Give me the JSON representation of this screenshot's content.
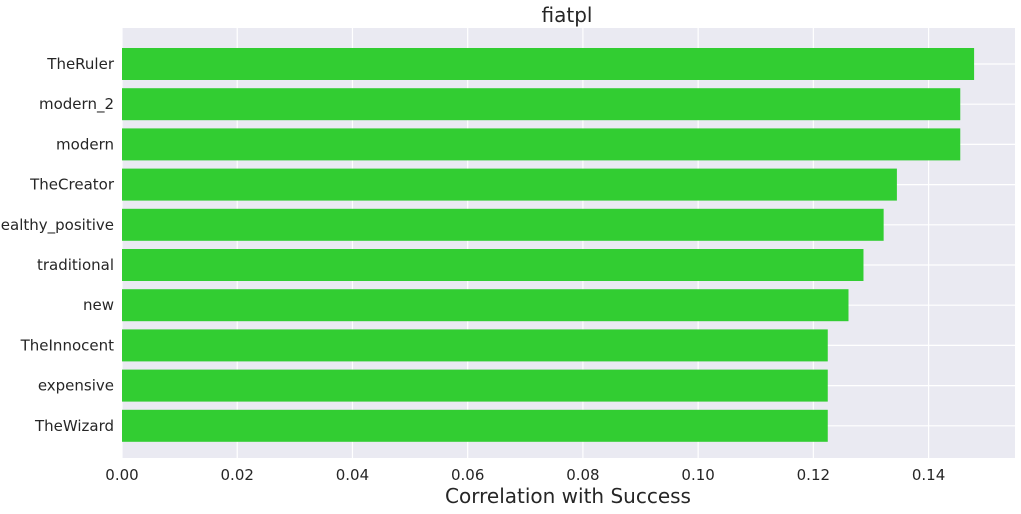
{
  "chart_data": {
    "type": "bar",
    "orientation": "horizontal",
    "title": "fiatpl",
    "xlabel": "Correlation with Success",
    "ylabel": "",
    "categories": [
      "TheRuler",
      "modern_2",
      "modern",
      "TheCreator",
      "healthy_positive",
      "traditional",
      "new",
      "TheInnocent",
      "expensive",
      "TheWizard"
    ],
    "values": [
      0.1479,
      0.1455,
      0.1455,
      0.1345,
      0.1322,
      0.1287,
      0.1261,
      0.1225,
      0.1225,
      0.1225
    ],
    "xlim": [
      0.0,
      0.155
    ],
    "xticks": [
      "0.00",
      "0.02",
      "0.04",
      "0.06",
      "0.08",
      "0.10",
      "0.12",
      "0.14"
    ],
    "xtick_values": [
      0.0,
      0.02,
      0.04,
      0.06,
      0.08,
      0.1,
      0.12,
      0.14
    ],
    "grid": true,
    "colors": {
      "bar": "#32cd32",
      "background": "#eaeaf2",
      "grid": "#ffffff"
    }
  }
}
